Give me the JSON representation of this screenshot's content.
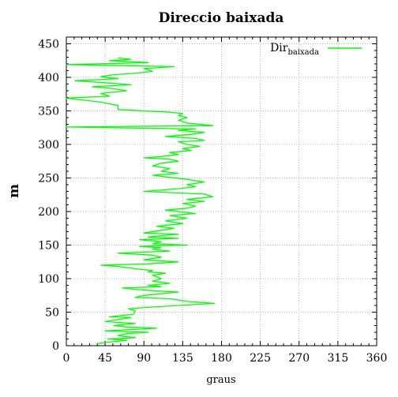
{
  "chart_data": {
    "type": "line",
    "title": "Direccio baixada",
    "xlabel": "graus",
    "ylabel": "m",
    "xlim": [
      0,
      360
    ],
    "ylim": [
      0,
      460
    ],
    "xticks": [
      0,
      45,
      90,
      135,
      180,
      225,
      270,
      315,
      360
    ],
    "yticks": [
      0,
      50,
      100,
      150,
      200,
      250,
      300,
      350,
      400,
      450
    ],
    "grid": true,
    "legend_position": "top-right",
    "series": [
      {
        "name": "Dir",
        "name_sub": "baixada",
        "color": "#00ff00",
        "points": [
          [
            35,
            3
          ],
          [
            40,
            4
          ],
          [
            55,
            6
          ],
          [
            70,
            8
          ],
          [
            48,
            10
          ],
          [
            80,
            12
          ],
          [
            60,
            15
          ],
          [
            70,
            18
          ],
          [
            95,
            20
          ],
          [
            45,
            22
          ],
          [
            105,
            26
          ],
          [
            70,
            28
          ],
          [
            55,
            30
          ],
          [
            80,
            33
          ],
          [
            45,
            36
          ],
          [
            60,
            39
          ],
          [
            75,
            42
          ],
          [
            50,
            43
          ],
          [
            78,
            47
          ],
          [
            80,
            52
          ],
          [
            72,
            55
          ],
          [
            90,
            57
          ],
          [
            130,
            60
          ],
          [
            172,
            63
          ],
          [
            140,
            66
          ],
          [
            120,
            70
          ],
          [
            80,
            72
          ],
          [
            90,
            75
          ],
          [
            130,
            80
          ],
          [
            100,
            82
          ],
          [
            80,
            84
          ],
          [
            65,
            86
          ],
          [
            110,
            88
          ],
          [
            95,
            90
          ],
          [
            120,
            93
          ],
          [
            100,
            96
          ],
          [
            110,
            100
          ],
          [
            100,
            105
          ],
          [
            115,
            108
          ],
          [
            95,
            110
          ],
          [
            100,
            112
          ],
          [
            85,
            114
          ],
          [
            60,
            118
          ],
          [
            40,
            120
          ],
          [
            95,
            122
          ],
          [
            130,
            125
          ],
          [
            90,
            128
          ],
          [
            110,
            132
          ],
          [
            100,
            135
          ],
          [
            60,
            138
          ],
          [
            120,
            141
          ],
          [
            100,
            144
          ],
          [
            110,
            146
          ],
          [
            85,
            148
          ],
          [
            140,
            150
          ],
          [
            100,
            152
          ],
          [
            110,
            155
          ],
          [
            85,
            158
          ],
          [
            130,
            160
          ],
          [
            95,
            162
          ],
          [
            110,
            164
          ],
          [
            130,
            166
          ],
          [
            90,
            168
          ],
          [
            110,
            172
          ],
          [
            125,
            175
          ],
          [
            105,
            178
          ],
          [
            135,
            182
          ],
          [
            115,
            186
          ],
          [
            140,
            190
          ],
          [
            120,
            194
          ],
          [
            150,
            197
          ],
          [
            130,
            200
          ],
          [
            115,
            202
          ],
          [
            140,
            205
          ],
          [
            150,
            208
          ],
          [
            135,
            212
          ],
          [
            160,
            215
          ],
          [
            140,
            218
          ],
          [
            170,
            222
          ],
          [
            160,
            226
          ],
          [
            90,
            230
          ],
          [
            130,
            234
          ],
          [
            150,
            237
          ],
          [
            140,
            240
          ],
          [
            160,
            244
          ],
          [
            140,
            248
          ],
          [
            120,
            251
          ],
          [
            100,
            254
          ],
          [
            130,
            257
          ],
          [
            110,
            260
          ],
          [
            120,
            264
          ],
          [
            100,
            268
          ],
          [
            110,
            272
          ],
          [
            130,
            275
          ],
          [
            120,
            278
          ],
          [
            90,
            280
          ],
          [
            110,
            282
          ],
          [
            130,
            285
          ],
          [
            120,
            288
          ],
          [
            145,
            291
          ],
          [
            135,
            294
          ],
          [
            155,
            297
          ],
          [
            140,
            300
          ],
          [
            130,
            304
          ],
          [
            160,
            306
          ],
          [
            150,
            309
          ],
          [
            115,
            312
          ],
          [
            145,
            315
          ],
          [
            160,
            318
          ],
          [
            130,
            321
          ],
          [
            150,
            323
          ],
          [
            0,
            326
          ],
          [
            170,
            328
          ],
          [
            140,
            332
          ],
          [
            130,
            336
          ],
          [
            140,
            340
          ],
          [
            130,
            343
          ],
          [
            135,
            346
          ],
          [
            120,
            348
          ],
          [
            60,
            352
          ],
          [
            60,
            358
          ],
          [
            40,
            363
          ],
          [
            20,
            366
          ],
          [
            0,
            369
          ],
          [
            50,
            372
          ],
          [
            40,
            376
          ],
          [
            70,
            380
          ],
          [
            55,
            383
          ],
          [
            30,
            386
          ],
          [
            75,
            389
          ],
          [
            45,
            392
          ],
          [
            10,
            395
          ],
          [
            60,
            398
          ],
          [
            40,
            401
          ],
          [
            55,
            404
          ],
          [
            80,
            406
          ],
          [
            100,
            409
          ],
          [
            90,
            413
          ],
          [
            125,
            416
          ],
          [
            0,
            419
          ],
          [
            95,
            422
          ],
          [
            50,
            425
          ],
          [
            75,
            427
          ],
          [
            60,
            429
          ]
        ]
      }
    ]
  }
}
